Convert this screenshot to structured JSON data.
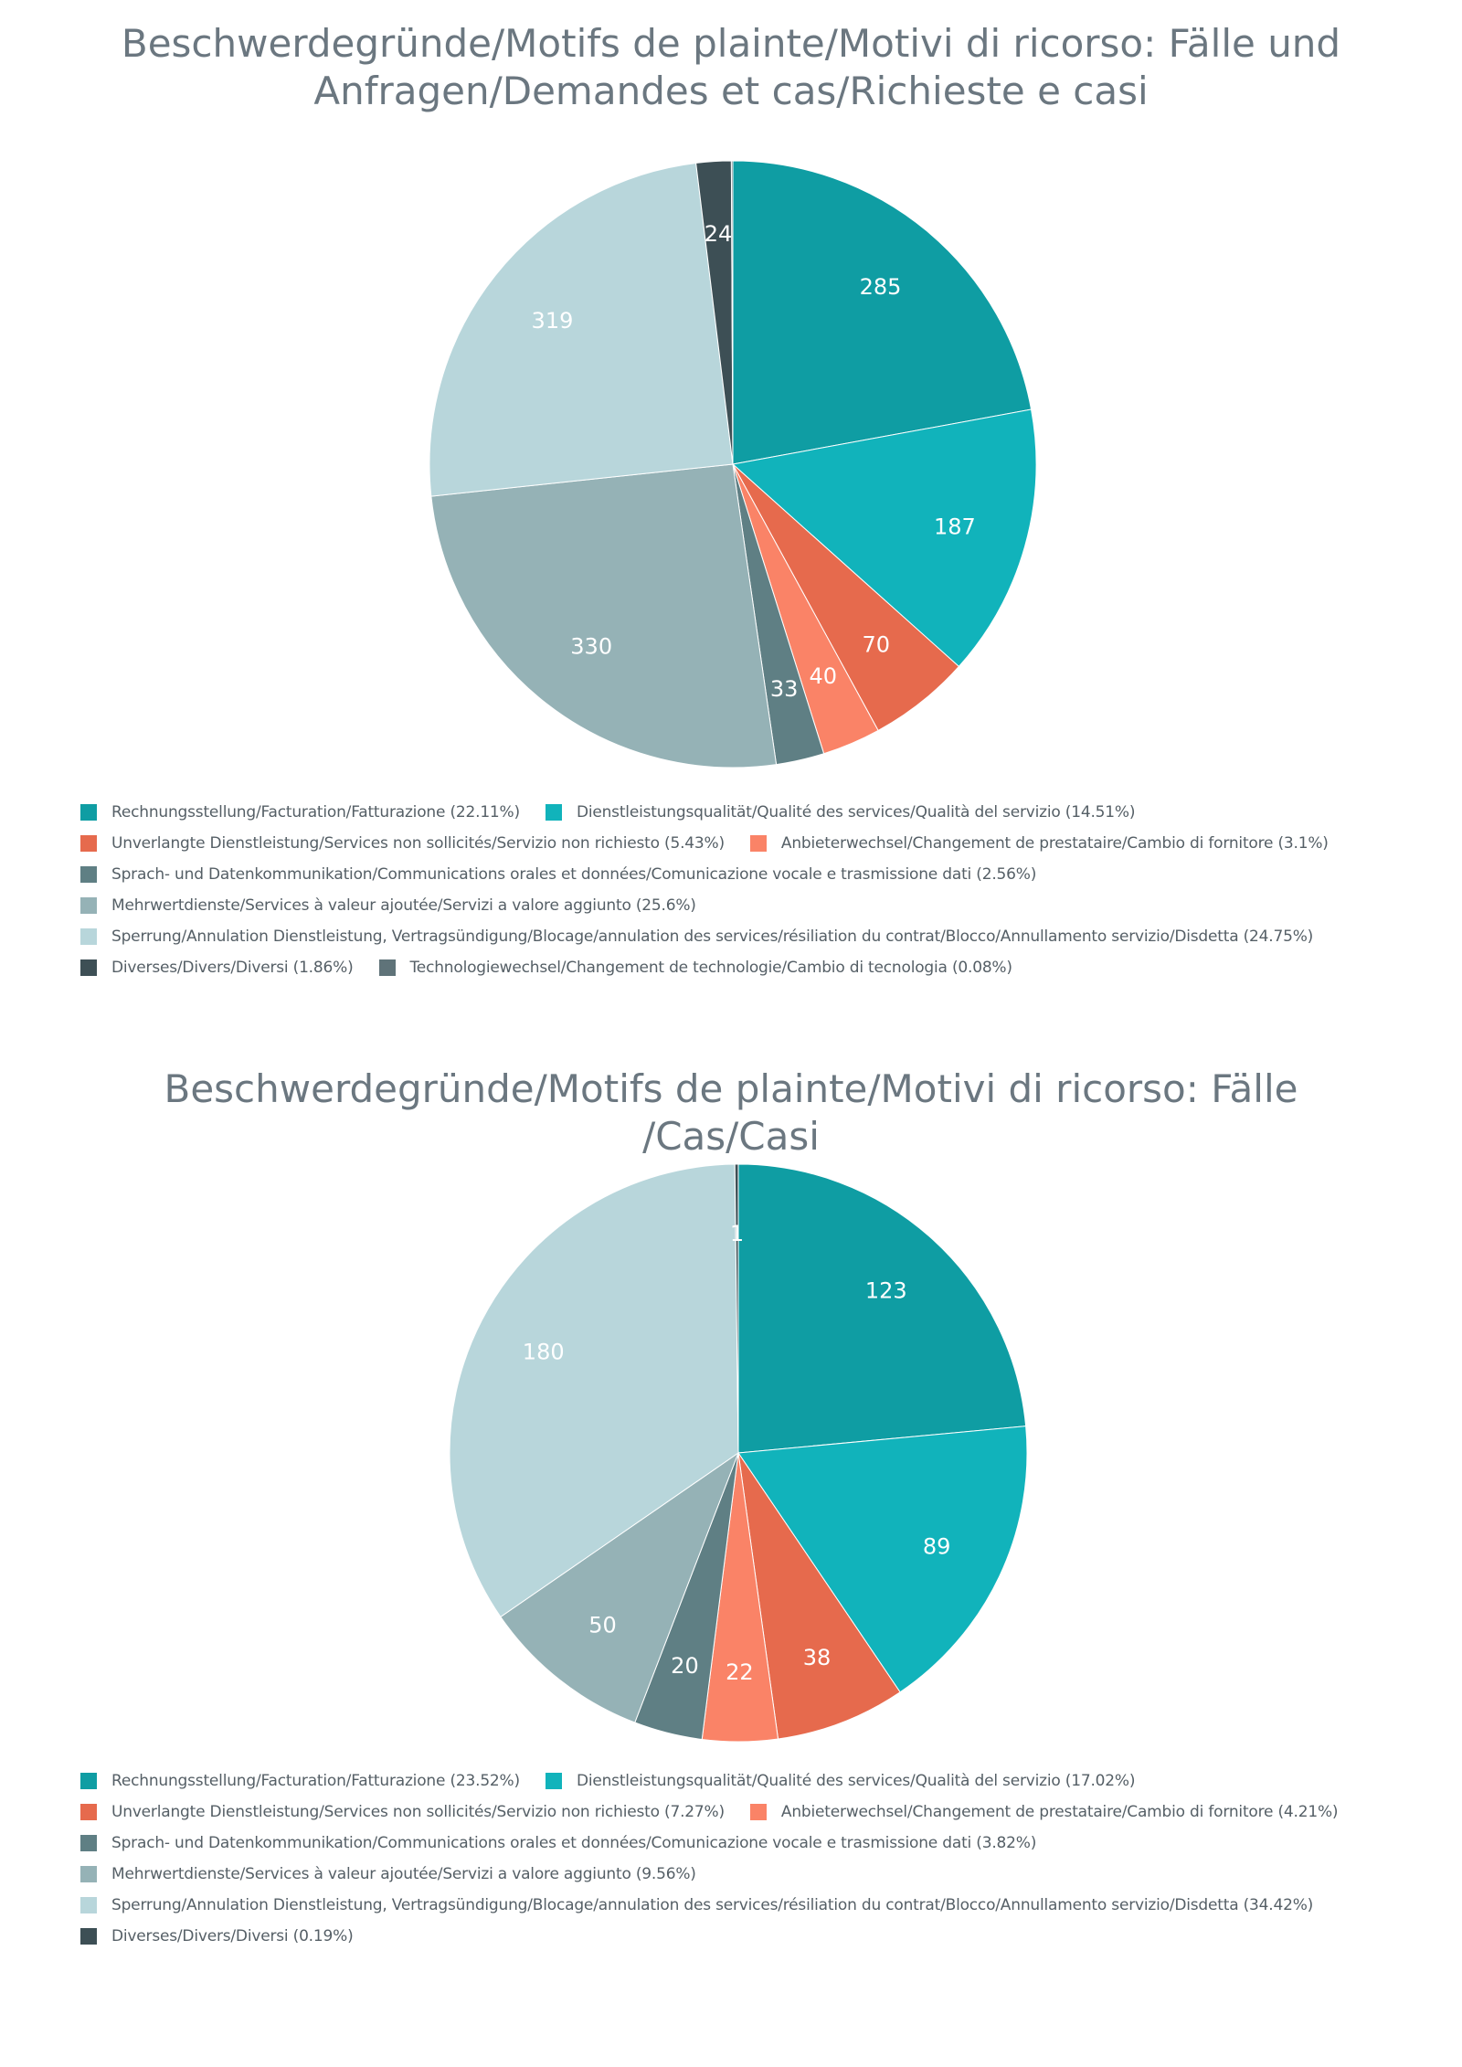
{
  "chart_data": [
    {
      "type": "pie",
      "title": "Beschwerdegründe/Motifs de plainte/Motivi di ricorso: Fälle und Anfragen/Demandes et cas/Richieste e casi",
      "legend_placement": "bottom",
      "slices": [
        {
          "name": "Rechnungsstellung/Facturation/Fatturazione",
          "value": 285,
          "percent": "22.11%",
          "color": "#0f9da3",
          "label": "285"
        },
        {
          "name": "Dienstleistungsqualität/Qualité des services/Qualità del servizio",
          "value": 187,
          "percent": "14.51%",
          "color": "#11b3bb",
          "label": "187"
        },
        {
          "name": "Unverlangte Dienstleistung/Services non sollicités/Servizio non richiesto",
          "value": 70,
          "percent": "5.43%",
          "color": "#e66a4d",
          "label": "70"
        },
        {
          "name": "Anbieterwechsel/Changement de prestataire/Cambio di fornitore",
          "value": 40,
          "percent": "3.1%",
          "color": "#fa8367",
          "label": "40"
        },
        {
          "name": "Sprach- und Datenkommunikation/Communications orales et données/Comunicazione vocale e trasmissione dati",
          "value": 33,
          "percent": "2.56%",
          "color": "#5f7f84",
          "label": "33"
        },
        {
          "name": "Mehrwertdienste/Services à valeur ajoutée/Servizi a valore aggiunto",
          "value": 330,
          "percent": "25.6%",
          "color": "#95b2b6",
          "label": "330"
        },
        {
          "name": "Sperrung/Annulation Dienstleistung, Vertragsündigung/Blocage/annulation des services/résiliation du contrat/Blocco/Annullamento servizio/Disdetta",
          "value": 319,
          "percent": "24.75%",
          "color": "#b8d6db",
          "label": "319"
        },
        {
          "name": "Diverses/Divers/Diversi",
          "value": 24,
          "percent": "1.86%",
          "color": "#3d4f55",
          "label": "24"
        },
        {
          "name": "Technologiewechsel/Changement de technologie/Cambio di tecnologia",
          "value": 1,
          "percent": "0.08%",
          "color": "#5f7379",
          "label": ""
        }
      ],
      "legend_rows": [
        [
          0,
          1
        ],
        [
          2,
          3
        ],
        [
          4
        ],
        [
          5
        ],
        [
          6
        ],
        [
          7,
          8
        ]
      ]
    },
    {
      "type": "pie",
      "title": "Beschwerdegründe/Motifs de plainte/Motivi di ricorso: Fälle /Cas/Casi",
      "legend_placement": "bottom",
      "slices": [
        {
          "name": "Rechnungsstellung/Facturation/Fatturazione",
          "value": 123,
          "percent": "23.52%",
          "color": "#0f9da3",
          "label": "123"
        },
        {
          "name": "Dienstleistungsqualität/Qualité des services/Qualità del servizio",
          "value": 89,
          "percent": "17.02%",
          "color": "#11b3bb",
          "label": "89"
        },
        {
          "name": "Unverlangte Dienstleistung/Services non sollicités/Servizio non richiesto",
          "value": 38,
          "percent": "7.27%",
          "color": "#e66a4d",
          "label": "38"
        },
        {
          "name": "Anbieterwechsel/Changement de prestataire/Cambio di fornitore",
          "value": 22,
          "percent": "4.21%",
          "color": "#fa8367",
          "label": "22"
        },
        {
          "name": "Sprach- und Datenkommunikation/Communications orales et données/Comunicazione vocale e trasmissione dati",
          "value": 20,
          "percent": "3.82%",
          "color": "#5f7f84",
          "label": "20"
        },
        {
          "name": "Mehrwertdienste/Services à valeur ajoutée/Servizi a valore aggiunto",
          "value": 50,
          "percent": "9.56%",
          "color": "#95b2b6",
          "label": "50"
        },
        {
          "name": "Sperrung/Annulation Dienstleistung, Vertragsündigung/Blocage/annulation des services/résiliation du contrat/Blocco/Annullamento servizio/Disdetta",
          "value": 180,
          "percent": "34.42%",
          "color": "#b8d6db",
          "label": "180"
        },
        {
          "name": "Diverses/Divers/Diversi",
          "value": 1,
          "percent": "0.19%",
          "color": "#3d4f55",
          "label": "1"
        }
      ],
      "legend_rows": [
        [
          0,
          1
        ],
        [
          2,
          3
        ],
        [
          4
        ],
        [
          5
        ],
        [
          6
        ],
        [
          7
        ]
      ]
    }
  ]
}
